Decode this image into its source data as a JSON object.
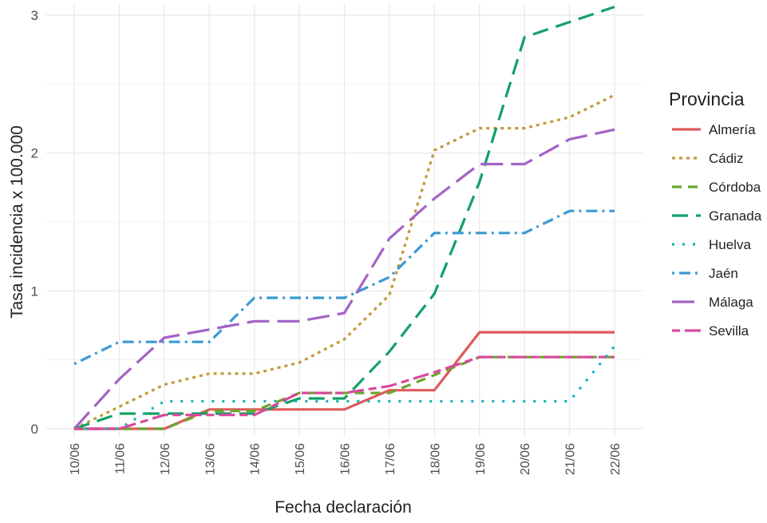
{
  "chart_data": {
    "type": "line",
    "title": "",
    "xlabel": "Fecha declaración",
    "ylabel": "Tasa incidencia x 100.000",
    "ylim": [
      0,
      3.1
    ],
    "yticks": [
      0,
      1,
      2,
      3
    ],
    "grid": true,
    "legend": {
      "title": "Provincia",
      "position": "right"
    },
    "categories": [
      "10/06",
      "11/06",
      "12/06",
      "13/06",
      "14/06",
      "15/06",
      "16/06",
      "17/06",
      "18/06",
      "19/06",
      "20/06",
      "21/06",
      "22/06"
    ],
    "series": [
      {
        "name": "Almería",
        "color": "#E0595C",
        "dash": "solid",
        "values": [
          0,
          0,
          0,
          0.14,
          0.14,
          0.14,
          0.14,
          0.28,
          0.28,
          0.7,
          0.7,
          0.7,
          0.7
        ]
      },
      {
        "name": "Cádiz",
        "color": "#C29B3A",
        "dash": "dotted",
        "values": [
          0,
          0.16,
          0.32,
          0.4,
          0.4,
          0.48,
          0.65,
          0.97,
          2.02,
          2.18,
          2.18,
          2.26,
          2.42
        ]
      },
      {
        "name": "Córdoba",
        "color": "#6BA52E",
        "dash": "dashed",
        "values": [
          0,
          0,
          0,
          0.13,
          0.13,
          0.26,
          0.26,
          0.26,
          0.39,
          0.52,
          0.52,
          0.52,
          0.52
        ]
      },
      {
        "name": "Granada",
        "color": "#14A068",
        "dash": "longdash",
        "values": [
          0,
          0.11,
          0.11,
          0.11,
          0.11,
          0.22,
          0.22,
          0.56,
          0.98,
          1.79,
          2.84,
          2.95,
          3.06
        ]
      },
      {
        "name": "Huelva",
        "color": "#16B3BD",
        "dash": "dotted-sparse",
        "values": [
          0,
          0,
          0.2,
          0.2,
          0.2,
          0.2,
          0.2,
          0.2,
          0.2,
          0.2,
          0.2,
          0.2,
          0.6
        ]
      },
      {
        "name": "Jaén",
        "color": "#3B9AD3",
        "dash": "dotdash",
        "values": [
          0.47,
          0.63,
          0.63,
          0.63,
          0.95,
          0.95,
          0.95,
          1.1,
          1.42,
          1.42,
          1.42,
          1.58,
          1.58
        ]
      },
      {
        "name": "Málaga",
        "color": "#A463C6",
        "dash": "longdash2",
        "values": [
          0,
          0.36,
          0.66,
          0.72,
          0.78,
          0.78,
          0.84,
          1.38,
          1.67,
          1.92,
          1.92,
          2.1,
          2.17
        ]
      },
      {
        "name": "Sevilla",
        "color": "#D9489E",
        "dash": "twodash",
        "values": [
          0,
          0,
          0.1,
          0.1,
          0.1,
          0.26,
          0.26,
          0.31,
          0.41,
          0.52,
          0.52,
          0.52,
          0.52
        ]
      }
    ]
  }
}
